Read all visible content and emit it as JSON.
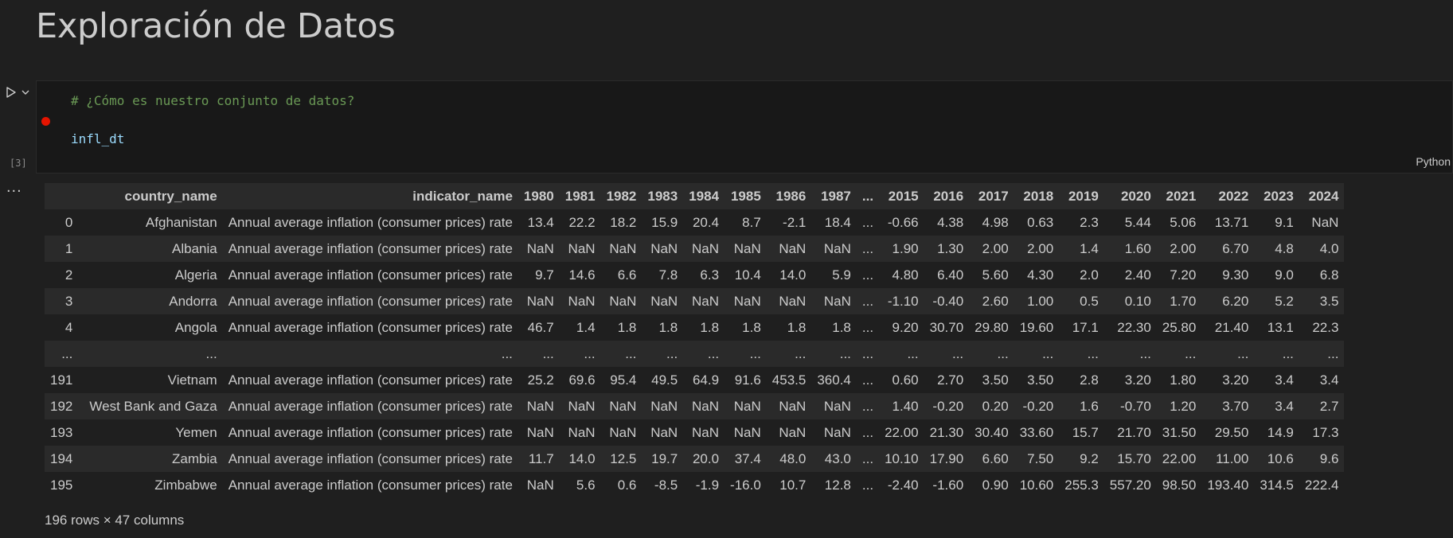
{
  "markdown": {
    "heading": "Exploración de Datos"
  },
  "cell": {
    "exec_count": "[3]",
    "code_comment": "# ¿Cómo es nuestro conjunto de datos?",
    "code_var": "infl_dt",
    "language": "Python",
    "output_menu": "..."
  },
  "dataframe": {
    "columns": [
      "",
      "country_name",
      "indicator_name",
      "1980",
      "1981",
      "1982",
      "1983",
      "1984",
      "1985",
      "1986",
      "1987",
      "...",
      "2015",
      "2016",
      "2017",
      "2018",
      "2019",
      "2020",
      "2021",
      "2022",
      "2023",
      "2024"
    ],
    "rows": [
      [
        "0",
        "Afghanistan",
        "Annual average inflation (consumer prices) rate",
        "13.4",
        "22.2",
        "18.2",
        "15.9",
        "20.4",
        "8.7",
        "-2.1",
        "18.4",
        "...",
        "-0.66",
        "4.38",
        "4.98",
        "0.63",
        "2.3",
        "5.44",
        "5.06",
        "13.71",
        "9.1",
        "NaN"
      ],
      [
        "1",
        "Albania",
        "Annual average inflation (consumer prices) rate",
        "NaN",
        "NaN",
        "NaN",
        "NaN",
        "NaN",
        "NaN",
        "NaN",
        "NaN",
        "...",
        "1.90",
        "1.30",
        "2.00",
        "2.00",
        "1.4",
        "1.60",
        "2.00",
        "6.70",
        "4.8",
        "4.0"
      ],
      [
        "2",
        "Algeria",
        "Annual average inflation (consumer prices) rate",
        "9.7",
        "14.6",
        "6.6",
        "7.8",
        "6.3",
        "10.4",
        "14.0",
        "5.9",
        "...",
        "4.80",
        "6.40",
        "5.60",
        "4.30",
        "2.0",
        "2.40",
        "7.20",
        "9.30",
        "9.0",
        "6.8"
      ],
      [
        "3",
        "Andorra",
        "Annual average inflation (consumer prices) rate",
        "NaN",
        "NaN",
        "NaN",
        "NaN",
        "NaN",
        "NaN",
        "NaN",
        "NaN",
        "...",
        "-1.10",
        "-0.40",
        "2.60",
        "1.00",
        "0.5",
        "0.10",
        "1.70",
        "6.20",
        "5.2",
        "3.5"
      ],
      [
        "4",
        "Angola",
        "Annual average inflation (consumer prices) rate",
        "46.7",
        "1.4",
        "1.8",
        "1.8",
        "1.8",
        "1.8",
        "1.8",
        "1.8",
        "...",
        "9.20",
        "30.70",
        "29.80",
        "19.60",
        "17.1",
        "22.30",
        "25.80",
        "21.40",
        "13.1",
        "22.3"
      ],
      [
        "...",
        "...",
        "...",
        "...",
        "...",
        "...",
        "...",
        "...",
        "...",
        "...",
        "...",
        "...",
        "...",
        "...",
        "...",
        "...",
        "...",
        "...",
        "...",
        "...",
        "...",
        "..."
      ],
      [
        "191",
        "Vietnam",
        "Annual average inflation (consumer prices) rate",
        "25.2",
        "69.6",
        "95.4",
        "49.5",
        "64.9",
        "91.6",
        "453.5",
        "360.4",
        "...",
        "0.60",
        "2.70",
        "3.50",
        "3.50",
        "2.8",
        "3.20",
        "1.80",
        "3.20",
        "3.4",
        "3.4"
      ],
      [
        "192",
        "West Bank and Gaza",
        "Annual average inflation (consumer prices) rate",
        "NaN",
        "NaN",
        "NaN",
        "NaN",
        "NaN",
        "NaN",
        "NaN",
        "NaN",
        "...",
        "1.40",
        "-0.20",
        "0.20",
        "-0.20",
        "1.6",
        "-0.70",
        "1.20",
        "3.70",
        "3.4",
        "2.7"
      ],
      [
        "193",
        "Yemen",
        "Annual average inflation (consumer prices) rate",
        "NaN",
        "NaN",
        "NaN",
        "NaN",
        "NaN",
        "NaN",
        "NaN",
        "NaN",
        "...",
        "22.00",
        "21.30",
        "30.40",
        "33.60",
        "15.7",
        "21.70",
        "31.50",
        "29.50",
        "14.9",
        "17.3"
      ],
      [
        "194",
        "Zambia",
        "Annual average inflation (consumer prices) rate",
        "11.7",
        "14.0",
        "12.5",
        "19.7",
        "20.0",
        "37.4",
        "48.0",
        "43.0",
        "...",
        "10.10",
        "17.90",
        "6.60",
        "7.50",
        "9.2",
        "15.70",
        "22.00",
        "11.00",
        "10.6",
        "9.6"
      ],
      [
        "195",
        "Zimbabwe",
        "Annual average inflation (consumer prices) rate",
        "NaN",
        "5.6",
        "0.6",
        "-8.5",
        "-1.9",
        "-16.0",
        "10.7",
        "12.8",
        "...",
        "-2.40",
        "-1.60",
        "0.90",
        "10.60",
        "255.3",
        "557.20",
        "98.50",
        "193.40",
        "314.5",
        "222.4"
      ]
    ],
    "footer": "196 rows × 47 columns"
  }
}
